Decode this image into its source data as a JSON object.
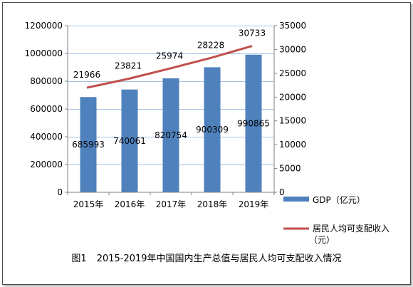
{
  "caption": {
    "figure_number": "图1",
    "title": "2015-2019年中国国内生产总值与居民人均可支配收入情况"
  },
  "legend": {
    "gdp_label": "GDP（亿元）",
    "income_label_line1": "居民人均可支配收入",
    "income_label_line2": "（元）"
  },
  "colors": {
    "bar": "#4f81bd",
    "line": "#c0504d",
    "gridline": "#a6c3e4"
  },
  "chart_data": {
    "type": "bar",
    "title": "",
    "categories": [
      "2015年",
      "2016年",
      "2017年",
      "2018年",
      "2019年"
    ],
    "series": [
      {
        "name": "GDP（亿元）",
        "type": "bar",
        "axis": "left",
        "values": [
          685993,
          740061,
          820754,
          900309,
          990865
        ],
        "value_labels": [
          "685993",
          "740061",
          "820754",
          "900309",
          "990865"
        ]
      },
      {
        "name": "居民人均可支配收入（元）",
        "type": "line",
        "axis": "right",
        "values": [
          21966,
          23821,
          25974,
          28228,
          30733
        ],
        "value_labels": [
          "21966",
          "23821",
          "25974",
          "28228",
          "30733"
        ]
      }
    ],
    "y_left": {
      "lim": [
        0,
        1200000
      ],
      "ticks": [
        0,
        200000,
        400000,
        600000,
        800000,
        1000000,
        1200000
      ],
      "tick_labels": [
        "0",
        "200000",
        "400000",
        "600000",
        "800000",
        "1000000",
        "1200000"
      ]
    },
    "y_right": {
      "lim": [
        0,
        35000
      ],
      "ticks": [
        0,
        5000,
        10000,
        15000,
        20000,
        25000,
        30000,
        35000
      ],
      "tick_labels": [
        "0",
        "5000",
        "10000",
        "15000",
        "20000",
        "25000",
        "30000",
        "35000"
      ]
    },
    "xlabel": "",
    "ylabel": "",
    "grid": true,
    "legend_position": "right"
  }
}
